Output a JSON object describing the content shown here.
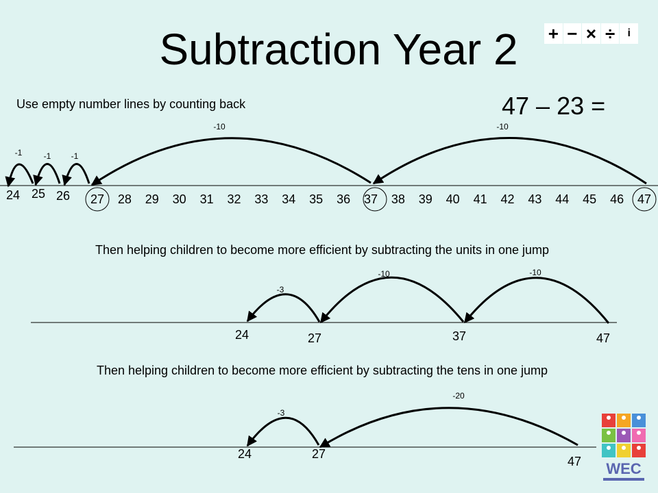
{
  "title": "Subtraction Year 2",
  "intro": "Use empty number lines by counting back",
  "equation": "47 – 23 =",
  "line2_caption": "Then helping children to become more efficient by subtracting the units in one jump",
  "line3_caption": "Then helping children to become more efficient by subtracting the tens in one jump",
  "ops_badge": [
    "+",
    "−",
    "×",
    "÷",
    "i"
  ],
  "logo_text": "WEC",
  "number_line_1": {
    "numbers": [
      "24",
      "25",
      "26",
      "27",
      "28",
      "29",
      "30",
      "31",
      "32",
      "33",
      "34",
      "35",
      "36",
      "37",
      "38",
      "39",
      "40",
      "41",
      "42",
      "43",
      "44",
      "45",
      "46",
      "47"
    ],
    "circled": [
      "27",
      "37",
      "47"
    ],
    "jumps": [
      "-10",
      "-10",
      "-1",
      "-1",
      "-1"
    ]
  },
  "number_line_2": {
    "numbers": [
      "24",
      "27",
      "37",
      "47"
    ],
    "jumps": [
      "-3",
      "-10",
      "-10"
    ]
  },
  "number_line_3": {
    "numbers": [
      "24",
      "27",
      "47"
    ],
    "jumps": [
      "-3",
      "-20"
    ]
  },
  "colors": {
    "background": "#dff3f1",
    "ink": "#000000"
  }
}
